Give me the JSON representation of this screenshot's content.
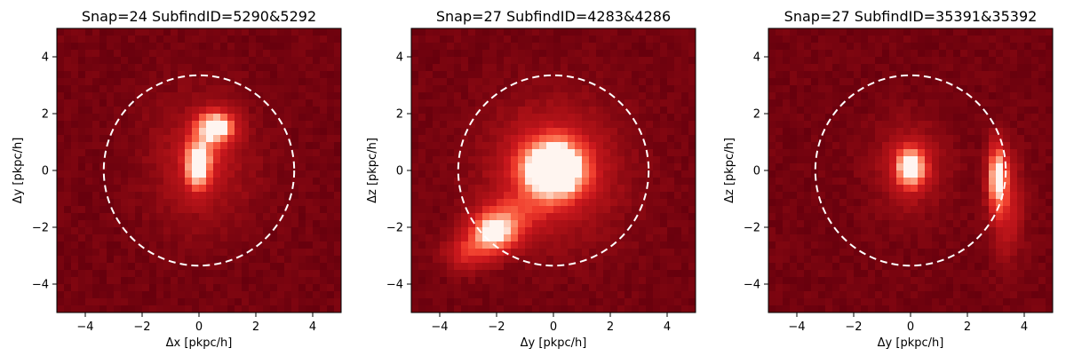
{
  "chart_data": [
    {
      "type": "heatmap",
      "title": "Snap=24 SubfindID=5290&5292",
      "xlabel": "Δx [pkpc/h]",
      "ylabel": "Δy [pkpc/h]",
      "xlim": [
        -5,
        5
      ],
      "ylim": [
        -5,
        5
      ],
      "xticks": [
        -4,
        -2,
        0,
        2,
        4
      ],
      "yticks": [
        -4,
        -2,
        0,
        2,
        4
      ],
      "xtick_labels": [
        "−4",
        "−2",
        "0",
        "2",
        "4"
      ],
      "ytick_labels": [
        "−4",
        "−2",
        "0",
        "2",
        "4"
      ],
      "colormap": "Reds",
      "background_color": "#6b0008",
      "circle": {
        "center": [
          0,
          0
        ],
        "radius": 3.35,
        "style": "dashed",
        "color": "#ffffff"
      },
      "blobs": [
        {
          "center": [
            0.6,
            1.55
          ],
          "sigma": [
            0.42,
            0.35
          ],
          "amp": 1.1
        },
        {
          "center": [
            -0.05,
            0.15
          ],
          "sigma": [
            0.3,
            0.55
          ],
          "amp": 1.05
        },
        {
          "center": [
            0.3,
            0.9
          ],
          "sigma": [
            0.5,
            0.6
          ],
          "amp": 0.25
        },
        {
          "center": [
            0.1,
            0.3
          ],
          "sigma": [
            1.3,
            1.6
          ],
          "amp": 0.22
        }
      ]
    },
    {
      "type": "heatmap",
      "title": "Snap=27 SubfindID=4283&4286",
      "xlabel": "Δy [pkpc/h]",
      "ylabel": "Δz [pkpc/h]",
      "xlim": [
        -5,
        5
      ],
      "ylim": [
        -5,
        5
      ],
      "xticks": [
        -4,
        -2,
        0,
        2,
        4
      ],
      "yticks": [
        -4,
        -2,
        0,
        2,
        4
      ],
      "xtick_labels": [
        "−4",
        "−2",
        "0",
        "2",
        "4"
      ],
      "ytick_labels": [
        "−4",
        "−2",
        "0",
        "2",
        "4"
      ],
      "colormap": "Reds",
      "background_color": "#6b0008",
      "circle": {
        "center": [
          0,
          0
        ],
        "radius": 3.35,
        "style": "dashed",
        "color": "#ffffff"
      },
      "blobs": [
        {
          "center": [
            0,
            0.05
          ],
          "sigma": [
            0.75,
            0.7
          ],
          "amp": 1.5
        },
        {
          "center": [
            -2.1,
            -2.2
          ],
          "sigma": [
            0.55,
            0.45
          ],
          "amp": 0.95
        },
        {
          "center": [
            -1.5,
            -1.6
          ],
          "sigma": [
            0.8,
            0.55
          ],
          "amp": 0.35
        },
        {
          "center": [
            -3.0,
            -2.9
          ],
          "sigma": [
            0.6,
            0.45
          ],
          "amp": 0.4
        },
        {
          "center": [
            0,
            0
          ],
          "sigma": [
            1.7,
            1.7
          ],
          "amp": 0.3
        }
      ]
    },
    {
      "type": "heatmap",
      "title": "Snap=27 SubfindID=35391&35392",
      "xlabel": "Δy [pkpc/h]",
      "ylabel": "Δz [pkpc/h]",
      "xlim": [
        -5,
        5
      ],
      "ylim": [
        -5,
        5
      ],
      "xticks": [
        -4,
        -2,
        0,
        2,
        4
      ],
      "yticks": [
        -4,
        -2,
        0,
        2,
        4
      ],
      "xtick_labels": [
        "−4",
        "−2",
        "0",
        "2",
        "4"
      ],
      "ytick_labels": [
        "−4",
        "−2",
        "0",
        "2",
        "4"
      ],
      "colormap": "Reds",
      "background_color": "#6b0008",
      "circle": {
        "center": [
          0,
          0
        ],
        "radius": 3.35,
        "style": "dashed",
        "color": "#ffffff"
      },
      "blobs": [
        {
          "center": [
            0,
            0.1
          ],
          "sigma": [
            0.35,
            0.45
          ],
          "amp": 1.1
        },
        {
          "center": [
            0,
            0.1
          ],
          "sigma": [
            0.9,
            1.1
          ],
          "amp": 0.25
        },
        {
          "center": [
            3.05,
            -0.2
          ],
          "sigma": [
            0.22,
            0.75
          ],
          "amp": 1.0
        },
        {
          "center": [
            3.4,
            -1.3
          ],
          "sigma": [
            0.4,
            1.2
          ],
          "amp": 0.35
        }
      ]
    }
  ]
}
